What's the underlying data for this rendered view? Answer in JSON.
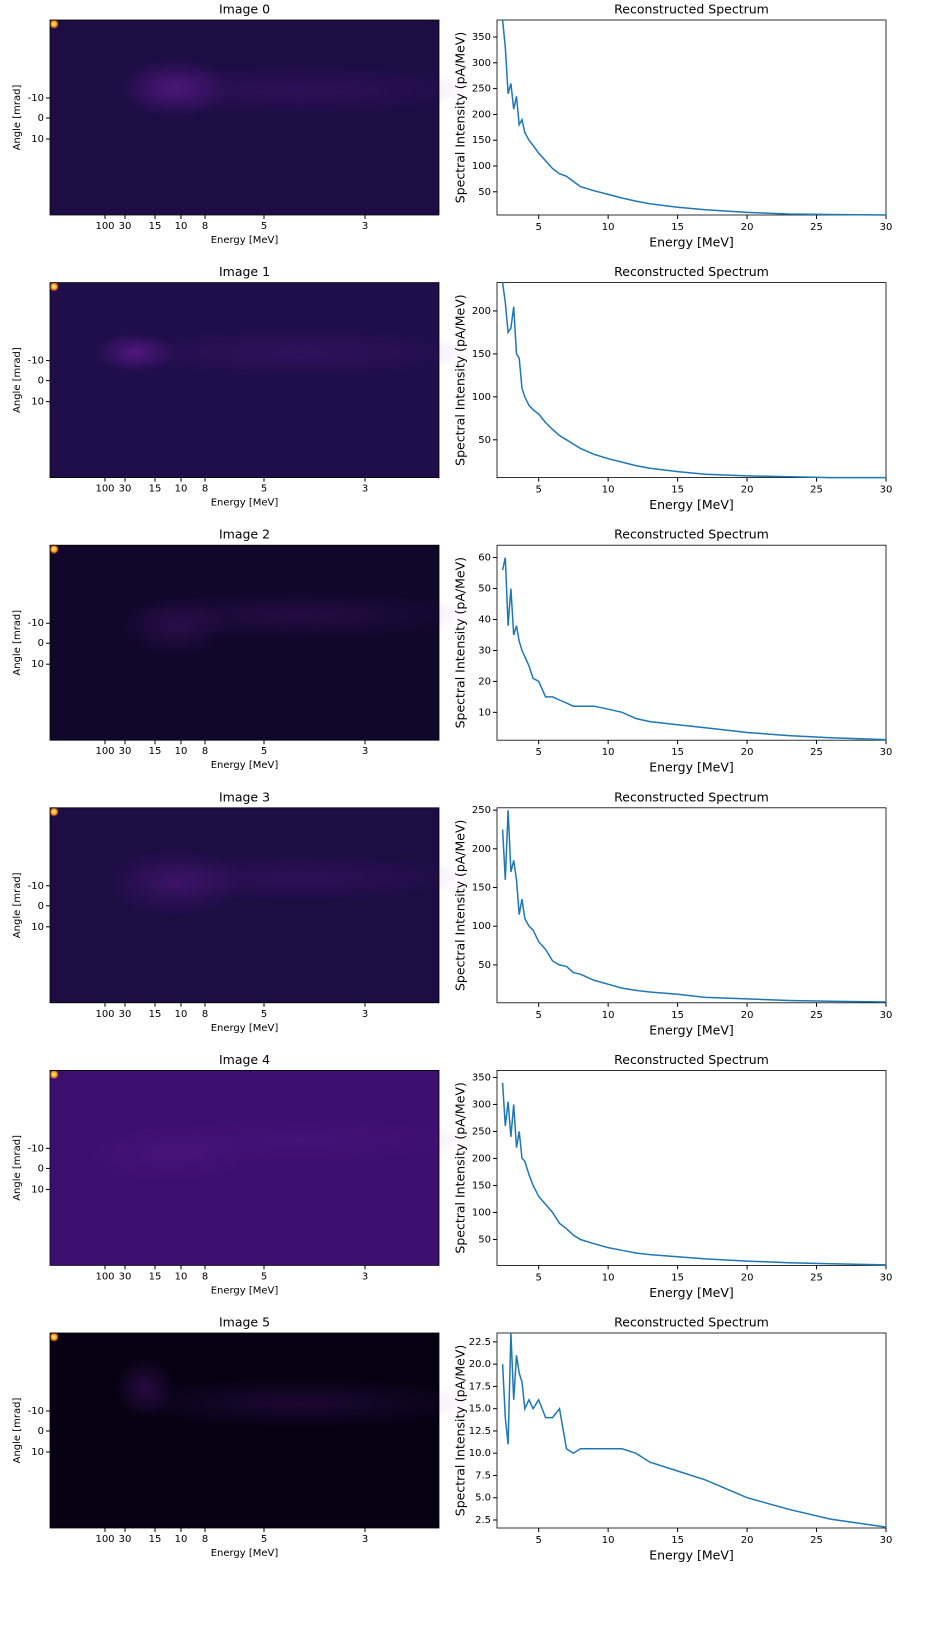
{
  "chart_data": [
    {
      "type": "image",
      "title": "Image 0",
      "xlabel": "Energy [MeV]",
      "ylabel": "Angle [mrad]",
      "xticks": [
        100,
        30,
        15,
        10,
        8,
        5,
        3
      ],
      "yticks": [
        -10,
        0,
        10
      ]
    },
    {
      "type": "line",
      "title": "Reconstructed Spectrum",
      "xlabel": "Energy [MeV]",
      "ylabel": "Spectral Intensity (pA/MeV)",
      "color": "#1f77b4",
      "xlim": [
        2,
        30
      ],
      "ylim": [
        5,
        383
      ],
      "xticks": [
        5,
        10,
        15,
        20,
        25,
        30
      ],
      "yticks": [
        50,
        100,
        150,
        200,
        250,
        300,
        350
      ],
      "x": [
        2.4,
        2.6,
        2.8,
        3.0,
        3.2,
        3.4,
        3.6,
        3.8,
        4.0,
        4.3,
        4.6,
        5.0,
        5.5,
        6.0,
        6.5,
        7.0,
        7.5,
        8.0,
        9.0,
        10.0,
        11.0,
        12.0,
        13.0,
        15.0,
        17.0,
        20.0,
        23.0,
        26.0,
        30.0
      ],
      "values": [
        383,
        330,
        240,
        260,
        210,
        235,
        180,
        190,
        165,
        150,
        140,
        125,
        110,
        95,
        85,
        80,
        70,
        60,
        52,
        45,
        38,
        32,
        27,
        20,
        15,
        10,
        7,
        6,
        5
      ]
    },
    {
      "type": "image",
      "title": "Image 1",
      "xlabel": "Energy [MeV]",
      "ylabel": "Angle [mrad]",
      "xticks": [
        100,
        30,
        15,
        10,
        8,
        5,
        3
      ],
      "yticks": [
        -10,
        0,
        10
      ]
    },
    {
      "type": "line",
      "title": "Reconstructed Spectrum",
      "xlabel": "Energy [MeV]",
      "ylabel": "Spectral Intensity (pA/MeV)",
      "color": "#1f77b4",
      "xlim": [
        2,
        30
      ],
      "ylim": [
        6,
        233
      ],
      "xticks": [
        5,
        10,
        15,
        20,
        25,
        30
      ],
      "yticks": [
        50,
        100,
        150,
        200
      ],
      "x": [
        2.4,
        2.6,
        2.8,
        3.0,
        3.2,
        3.4,
        3.6,
        3.8,
        4.0,
        4.3,
        4.6,
        5.0,
        5.5,
        6.0,
        6.5,
        7.0,
        7.5,
        8.0,
        9.0,
        10.0,
        11.0,
        12.0,
        13.0,
        15.0,
        17.0,
        20.0,
        23.0,
        26.0,
        30.0
      ],
      "values": [
        233,
        210,
        175,
        180,
        205,
        150,
        145,
        110,
        100,
        90,
        85,
        80,
        70,
        62,
        55,
        50,
        45,
        40,
        33,
        28,
        24,
        20,
        17,
        13,
        10,
        8,
        7,
        6,
        6
      ]
    },
    {
      "type": "image",
      "title": "Image 2",
      "xlabel": "Energy [MeV]",
      "ylabel": "Angle [mrad]",
      "xticks": [
        100,
        30,
        15,
        10,
        8,
        5,
        3
      ],
      "yticks": [
        -10,
        0,
        10
      ]
    },
    {
      "type": "line",
      "title": "Reconstructed Spectrum",
      "xlabel": "Energy [MeV]",
      "ylabel": "Spectral Intensity (pA/MeV)",
      "color": "#1f77b4",
      "xlim": [
        2,
        30
      ],
      "ylim": [
        1,
        64
      ],
      "xticks": [
        5,
        10,
        15,
        20,
        25,
        30
      ],
      "yticks": [
        10,
        20,
        30,
        40,
        50,
        60
      ],
      "x": [
        2.4,
        2.6,
        2.8,
        3.0,
        3.2,
        3.4,
        3.6,
        3.8,
        4.0,
        4.3,
        4.6,
        5.0,
        5.5,
        6.0,
        6.5,
        7.0,
        7.5,
        8.0,
        9.0,
        10.0,
        11.0,
        12.0,
        13.0,
        15.0,
        17.0,
        20.0,
        23.0,
        26.0,
        30.0
      ],
      "values": [
        56,
        60,
        38,
        50,
        35,
        38,
        33,
        30,
        28,
        25,
        21,
        20,
        15,
        15,
        14,
        13,
        12,
        12,
        12,
        11,
        10,
        8,
        7,
        6,
        5,
        3.5,
        2.5,
        1.8,
        1.2
      ]
    },
    {
      "type": "image",
      "title": "Image 3",
      "xlabel": "Energy [MeV]",
      "ylabel": "Angle [mrad]",
      "xticks": [
        100,
        30,
        15,
        10,
        8,
        5,
        3
      ],
      "yticks": [
        -10,
        0,
        10
      ]
    },
    {
      "type": "line",
      "title": "Reconstructed Spectrum",
      "xlabel": "Energy [MeV]",
      "ylabel": "Spectral Intensity (pA/MeV)",
      "color": "#1f77b4",
      "xlim": [
        2,
        30
      ],
      "ylim": [
        1,
        253
      ],
      "xticks": [
        5,
        10,
        15,
        20,
        25,
        30
      ],
      "yticks": [
        50,
        100,
        150,
        200,
        250
      ],
      "x": [
        2.4,
        2.6,
        2.8,
        3.0,
        3.2,
        3.4,
        3.6,
        3.8,
        4.0,
        4.3,
        4.6,
        5.0,
        5.5,
        6.0,
        6.5,
        7.0,
        7.5,
        8.0,
        9.0,
        10.0,
        11.0,
        12.0,
        13.0,
        15.0,
        17.0,
        20.0,
        23.0,
        26.0,
        30.0
      ],
      "values": [
        225,
        160,
        250,
        170,
        185,
        160,
        115,
        135,
        110,
        100,
        95,
        80,
        70,
        55,
        50,
        48,
        40,
        38,
        30,
        25,
        20,
        17,
        15,
        12,
        8,
        6,
        4,
        3,
        2
      ]
    },
    {
      "type": "image",
      "title": "Image 4",
      "xlabel": "Energy [MeV]",
      "ylabel": "Angle [mrad]",
      "xticks": [
        100,
        30,
        15,
        10,
        8,
        5,
        3
      ],
      "yticks": [
        -10,
        0,
        10
      ]
    },
    {
      "type": "line",
      "title": "Reconstructed Spectrum",
      "xlabel": "Energy [MeV]",
      "ylabel": "Spectral Intensity (pA/MeV)",
      "color": "#1f77b4",
      "xlim": [
        2,
        30
      ],
      "ylim": [
        2,
        363
      ],
      "xticks": [
        5,
        10,
        15,
        20,
        25,
        30
      ],
      "yticks": [
        50,
        100,
        150,
        200,
        250,
        300,
        350
      ],
      "x": [
        2.4,
        2.6,
        2.8,
        3.0,
        3.2,
        3.4,
        3.6,
        3.8,
        4.0,
        4.3,
        4.6,
        5.0,
        5.5,
        6.0,
        6.5,
        7.0,
        7.5,
        8.0,
        9.0,
        10.0,
        11.0,
        12.0,
        13.0,
        15.0,
        17.0,
        20.0,
        23.0,
        26.0,
        30.0
      ],
      "values": [
        340,
        260,
        305,
        240,
        300,
        220,
        250,
        200,
        195,
        170,
        150,
        130,
        115,
        100,
        80,
        70,
        58,
        50,
        42,
        35,
        30,
        25,
        22,
        18,
        14,
        10,
        7,
        5,
        3
      ]
    },
    {
      "type": "image",
      "title": "Image 5",
      "xlabel": "Energy [MeV]",
      "ylabel": "Angle [mrad]",
      "xticks": [
        100,
        30,
        15,
        10,
        8,
        5,
        3
      ],
      "yticks": [
        -10,
        0,
        10
      ]
    },
    {
      "type": "line",
      "title": "Reconstructed Spectrum",
      "xlabel": "Energy [MeV]",
      "ylabel": "Spectral Intensity (pA/MeV)",
      "color": "#1f77b4",
      "xlim": [
        2,
        30
      ],
      "ylim": [
        1.6,
        23.5
      ],
      "xticks": [
        5,
        10,
        15,
        20,
        25,
        30
      ],
      "yticks": [
        2.5,
        {
          "value": 5,
          "label": "5.0"
        },
        7.5,
        {
          "value": 10,
          "label": "10.0"
        },
        12.5,
        {
          "value": 15,
          "label": "15.0"
        },
        17.5,
        {
          "value": 20,
          "label": "20.0"
        },
        22.5
      ],
      "x": [
        2.4,
        2.6,
        2.8,
        3.0,
        3.2,
        3.4,
        3.6,
        3.8,
        4.0,
        4.3,
        4.6,
        5.0,
        5.5,
        6.0,
        6.5,
        7.0,
        7.5,
        8.0,
        9.0,
        10.0,
        11.0,
        12.0,
        13.0,
        15.0,
        17.0,
        20.0,
        23.0,
        26.0,
        30.0
      ],
      "values": [
        20,
        14,
        11,
        23.5,
        16,
        21,
        19,
        18,
        15,
        16,
        15,
        16,
        14,
        14,
        15,
        10.5,
        10,
        10.5,
        10.5,
        10.5,
        10.5,
        10,
        9,
        8,
        7,
        5,
        3.7,
        2.6,
        1.7
      ]
    }
  ]
}
